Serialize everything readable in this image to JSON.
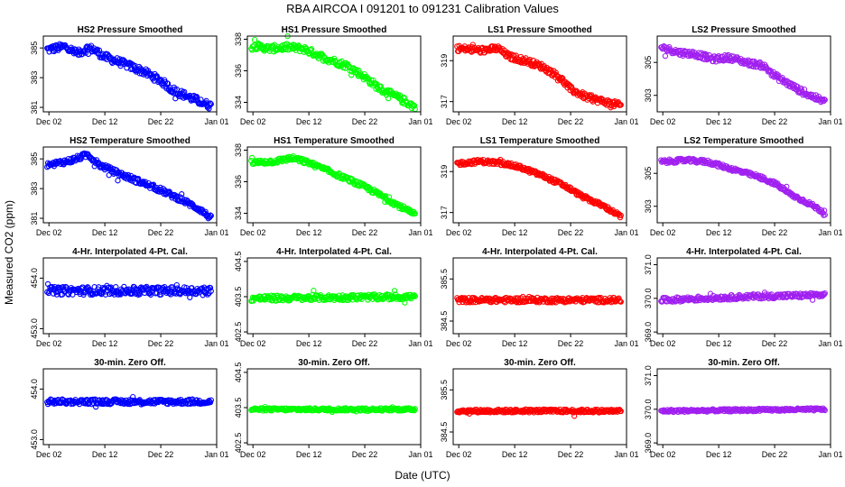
{
  "figure": {
    "title": "RBA   AIRCOA I   091201 to 091231   Calibration Values",
    "xlabel": "Date (UTC)",
    "ylabel": "Measured CO2 (ppm)"
  },
  "colors": {
    "blue": "#0000ff",
    "green": "#00ff00",
    "red": "#ff0000",
    "purple": "#a020f0"
  },
  "chart_data": [
    {
      "type": "scatter",
      "title": "HS2 Pressure Smoothed",
      "color": "#0000ff",
      "xlim": [
        -1,
        30
      ],
      "xticks": [
        0,
        10,
        20,
        30
      ],
      "xticklabels": [
        "Dec 02",
        "Dec 12",
        "Dec 22",
        "Jan 01"
      ],
      "ylim": [
        380.7,
        385.8
      ],
      "yticks": [
        381,
        383,
        385
      ],
      "yticklabels": [
        "381",
        "383",
        "385"
      ],
      "trend": [
        [
          0,
          384.9
        ],
        [
          3,
          385.1
        ],
        [
          5,
          384.6
        ],
        [
          7,
          385.0
        ],
        [
          8,
          384.9
        ],
        [
          10,
          384.4
        ],
        [
          13,
          384.0
        ],
        [
          17,
          383.4
        ],
        [
          20,
          382.8
        ],
        [
          22,
          382.2
        ],
        [
          25,
          381.7
        ],
        [
          29,
          381.1
        ]
      ],
      "noise": 0.25
    },
    {
      "type": "scatter",
      "title": "HS1 Pressure Smoothed",
      "color": "#00ff00",
      "xlim": [
        -1,
        30
      ],
      "xticks": [
        0,
        10,
        20,
        30
      ],
      "xticklabels": [
        "Dec 02",
        "Dec 12",
        "Dec 22",
        "Jan 01"
      ],
      "ylim": [
        333.4,
        338.2
      ],
      "yticks": [
        334,
        336,
        338
      ],
      "yticklabels": [
        "334",
        "336",
        "338"
      ],
      "trend": [
        [
          0,
          337.6
        ],
        [
          3,
          337.4
        ],
        [
          6,
          337.5
        ],
        [
          9,
          337.4
        ],
        [
          13,
          336.8
        ],
        [
          17,
          336.3
        ],
        [
          20,
          335.6
        ],
        [
          23,
          334.8
        ],
        [
          26,
          334.3
        ],
        [
          29,
          333.7
        ]
      ],
      "noise": 0.22
    },
    {
      "type": "scatter",
      "title": "LS1 Pressure Smoothed",
      "color": "#ff0000",
      "xlim": [
        -1,
        30
      ],
      "xticks": [
        0,
        10,
        20,
        30
      ],
      "xticklabels": [
        "Dec 02",
        "Dec 12",
        "Dec 22",
        "Jan 01"
      ],
      "ylim": [
        316.5,
        320.2
      ],
      "yticks": [
        317,
        319
      ],
      "yticklabels": [
        "317",
        "319"
      ],
      "trend": [
        [
          0,
          319.6
        ],
        [
          4,
          319.5
        ],
        [
          7,
          319.6
        ],
        [
          9,
          319.2
        ],
        [
          12,
          319.0
        ],
        [
          15,
          318.7
        ],
        [
          18,
          318.2
        ],
        [
          20,
          317.6
        ],
        [
          23,
          317.2
        ],
        [
          26,
          317.0
        ],
        [
          29,
          316.8
        ]
      ],
      "noise": 0.15
    },
    {
      "type": "scatter",
      "title": "LS2 Pressure Smoothed",
      "color": "#a020f0",
      "xlim": [
        -1,
        30
      ],
      "xticks": [
        0,
        10,
        20,
        30
      ],
      "xticklabels": [
        "Dec 02",
        "Dec 12",
        "Dec 22",
        "Jan 01"
      ],
      "ylim": [
        302.0,
        306.6
      ],
      "yticks": [
        303,
        305
      ],
      "yticklabels": [
        "303",
        "305"
      ],
      "trend": [
        [
          0,
          305.9
        ],
        [
          3,
          305.6
        ],
        [
          6,
          305.5
        ],
        [
          9,
          305.2
        ],
        [
          12,
          305.3
        ],
        [
          15,
          305.0
        ],
        [
          18,
          304.8
        ],
        [
          20,
          304.2
        ],
        [
          22,
          303.8
        ],
        [
          25,
          303.2
        ],
        [
          29,
          302.6
        ]
      ],
      "noise": 0.18
    },
    {
      "type": "scatter",
      "title": "HS2 Temperature Smoothed",
      "color": "#0000ff",
      "xlim": [
        -1,
        30
      ],
      "xticks": [
        0,
        10,
        20,
        30
      ],
      "xticklabels": [
        "Dec 02",
        "Dec 12",
        "Dec 22",
        "Jan 01"
      ],
      "ylim": [
        380.7,
        385.8
      ],
      "yticks": [
        381,
        383,
        385
      ],
      "yticklabels": [
        "381",
        "383",
        "385"
      ],
      "trend": [
        [
          0,
          384.6
        ],
        [
          4,
          384.9
        ],
        [
          7,
          385.3
        ],
        [
          9,
          384.6
        ],
        [
          12,
          384.1
        ],
        [
          16,
          383.5
        ],
        [
          20,
          382.9
        ],
        [
          24,
          382.2
        ],
        [
          27,
          381.6
        ],
        [
          29,
          381.0
        ]
      ],
      "noise": 0.18
    },
    {
      "type": "scatter",
      "title": "HS1 Temperature Smoothed",
      "color": "#00ff00",
      "xlim": [
        -1,
        30
      ],
      "xticks": [
        0,
        10,
        20,
        30
      ],
      "xticklabels": [
        "Dec 02",
        "Dec 12",
        "Dec 22",
        "Jan 01"
      ],
      "ylim": [
        333.4,
        338.2
      ],
      "yticks": [
        334,
        336,
        338
      ],
      "yticklabels": [
        "334",
        "336",
        "338"
      ],
      "trend": [
        [
          0,
          337.2
        ],
        [
          4,
          337.3
        ],
        [
          7,
          337.5
        ],
        [
          10,
          337.2
        ],
        [
          14,
          336.6
        ],
        [
          18,
          336.0
        ],
        [
          21,
          335.5
        ],
        [
          25,
          334.7
        ],
        [
          29,
          333.9
        ]
      ],
      "noise": 0.15
    },
    {
      "type": "scatter",
      "title": "LS1 Temperature Smoothed",
      "color": "#ff0000",
      "xlim": [
        -1,
        30
      ],
      "xticks": [
        0,
        10,
        20,
        30
      ],
      "xticklabels": [
        "Dec 02",
        "Dec 12",
        "Dec 22",
        "Jan 01"
      ],
      "ylim": [
        316.5,
        320.2
      ],
      "yticks": [
        317,
        319
      ],
      "yticklabels": [
        "317",
        "319"
      ],
      "trend": [
        [
          0,
          319.4
        ],
        [
          4,
          319.5
        ],
        [
          8,
          319.4
        ],
        [
          11,
          319.2
        ],
        [
          15,
          318.8
        ],
        [
          19,
          318.3
        ],
        [
          22,
          317.8
        ],
        [
          26,
          317.3
        ],
        [
          29,
          316.8
        ]
      ],
      "noise": 0.1
    },
    {
      "type": "scatter",
      "title": "LS2 Temperature Smoothed",
      "color": "#a020f0",
      "xlim": [
        -1,
        30
      ],
      "xticks": [
        0,
        10,
        20,
        30
      ],
      "xticklabels": [
        "Dec 02",
        "Dec 12",
        "Dec 22",
        "Jan 01"
      ],
      "ylim": [
        302.0,
        306.6
      ],
      "yticks": [
        303,
        305
      ],
      "yticklabels": [
        "303",
        "305"
      ],
      "trend": [
        [
          0,
          305.7
        ],
        [
          4,
          305.8
        ],
        [
          8,
          305.7
        ],
        [
          11,
          305.4
        ],
        [
          14,
          305.1
        ],
        [
          17,
          304.8
        ],
        [
          20,
          304.4
        ],
        [
          23,
          303.7
        ],
        [
          26,
          303.2
        ],
        [
          29,
          302.6
        ]
      ],
      "noise": 0.12
    },
    {
      "type": "scatter",
      "title": "4-Hr. Interpolated 4-Pt. Cal.",
      "color": "#0000ff",
      "xlim": [
        -1,
        30
      ],
      "xticks": [
        0,
        10,
        20,
        30
      ],
      "xticklabels": [
        "Dec 02",
        "Dec 12",
        "Dec 22",
        "Jan 01"
      ],
      "ylim": [
        452.9,
        454.4
      ],
      "yticks": [
        453.0,
        454.0
      ],
      "yticklabels": [
        "453.0",
        "454.0"
      ],
      "trend": [
        [
          0,
          453.75
        ],
        [
          29,
          453.75
        ]
      ],
      "noise": 0.08
    },
    {
      "type": "scatter",
      "title": "4-Hr. Interpolated 4-Pt. Cal.",
      "color": "#00ff00",
      "xlim": [
        -1,
        30
      ],
      "xticks": [
        0,
        10,
        20,
        30
      ],
      "xticklabels": [
        "Dec 02",
        "Dec 12",
        "Dec 22",
        "Jan 01"
      ],
      "ylim": [
        402.45,
        404.6
      ],
      "yticks": [
        402.5,
        403.5,
        404.5
      ],
      "yticklabels": [
        "402.5",
        "403.5",
        "404.5"
      ],
      "trend": [
        [
          0,
          403.45
        ],
        [
          29,
          403.5
        ]
      ],
      "noise": 0.08
    },
    {
      "type": "scatter",
      "title": "4-Hr. Interpolated 4-Pt. Cal.",
      "color": "#ff0000",
      "xlim": [
        -1,
        30
      ],
      "xticks": [
        0,
        10,
        20,
        30
      ],
      "xticklabels": [
        "Dec 02",
        "Dec 12",
        "Dec 22",
        "Jan 01"
      ],
      "ylim": [
        384.2,
        386.0
      ],
      "yticks": [
        384.5,
        385.5
      ],
      "yticklabels": [
        "384.5",
        "385.5"
      ],
      "trend": [
        [
          0,
          385.0
        ],
        [
          29,
          385.0
        ]
      ],
      "noise": 0.06
    },
    {
      "type": "scatter",
      "title": "4-Hr. Interpolated 4-Pt. Cal.",
      "color": "#a020f0",
      "xlim": [
        -1,
        30
      ],
      "xticks": [
        0,
        10,
        20,
        30
      ],
      "xticklabels": [
        "Dec 02",
        "Dec 12",
        "Dec 22",
        "Jan 01"
      ],
      "ylim": [
        368.95,
        371.2
      ],
      "yticks": [
        369.0,
        370.0,
        371.0
      ],
      "yticklabels": [
        "369.0",
        "370.0",
        "371.0"
      ],
      "trend": [
        [
          0,
          369.95
        ],
        [
          15,
          370.05
        ],
        [
          29,
          370.1
        ]
      ],
      "noise": 0.07
    },
    {
      "type": "scatter",
      "title": "30-min. Zero Off.",
      "color": "#0000ff",
      "xlim": [
        -1,
        30
      ],
      "xticks": [
        0,
        10,
        20,
        30
      ],
      "xticklabels": [
        "Dec 02",
        "Dec 12",
        "Dec 22",
        "Jan 01"
      ],
      "ylim": [
        452.9,
        454.4
      ],
      "yticks": [
        453.0,
        454.0
      ],
      "yticklabels": [
        "453.0",
        "454.0"
      ],
      "trend": [
        [
          0,
          453.75
        ],
        [
          29,
          453.75
        ]
      ],
      "noise": 0.05
    },
    {
      "type": "scatter",
      "title": "30-min. Zero Off.",
      "color": "#00ff00",
      "xlim": [
        -1,
        30
      ],
      "xticks": [
        0,
        10,
        20,
        30
      ],
      "xticklabels": [
        "Dec 02",
        "Dec 12",
        "Dec 22",
        "Jan 01"
      ],
      "ylim": [
        402.45,
        404.6
      ],
      "yticks": [
        402.5,
        403.5,
        404.5
      ],
      "yticklabels": [
        "402.5",
        "403.5",
        "404.5"
      ],
      "trend": [
        [
          0,
          403.45
        ],
        [
          29,
          403.45
        ]
      ],
      "noise": 0.04
    },
    {
      "type": "scatter",
      "title": "30-min. Zero Off.",
      "color": "#ff0000",
      "xlim": [
        -1,
        30
      ],
      "xticks": [
        0,
        10,
        20,
        30
      ],
      "xticklabels": [
        "Dec 02",
        "Dec 12",
        "Dec 22",
        "Jan 01"
      ],
      "ylim": [
        384.2,
        386.0
      ],
      "yticks": [
        384.5,
        385.5
      ],
      "yticklabels": [
        "384.5",
        "385.5"
      ],
      "trend": [
        [
          0,
          385.0
        ],
        [
          29,
          385.0
        ]
      ],
      "noise": 0.04
    },
    {
      "type": "scatter",
      "title": "30-min. Zero Off.",
      "color": "#a020f0",
      "xlim": [
        -1,
        30
      ],
      "xticks": [
        0,
        10,
        20,
        30
      ],
      "xticklabels": [
        "Dec 02",
        "Dec 12",
        "Dec 22",
        "Jan 01"
      ],
      "ylim": [
        368.95,
        371.2
      ],
      "yticks": [
        369.0,
        370.0,
        371.0
      ],
      "yticklabels": [
        "369.0",
        "370.0",
        "371.0"
      ],
      "trend": [
        [
          0,
          369.95
        ],
        [
          29,
          370.0
        ]
      ],
      "noise": 0.04
    }
  ]
}
